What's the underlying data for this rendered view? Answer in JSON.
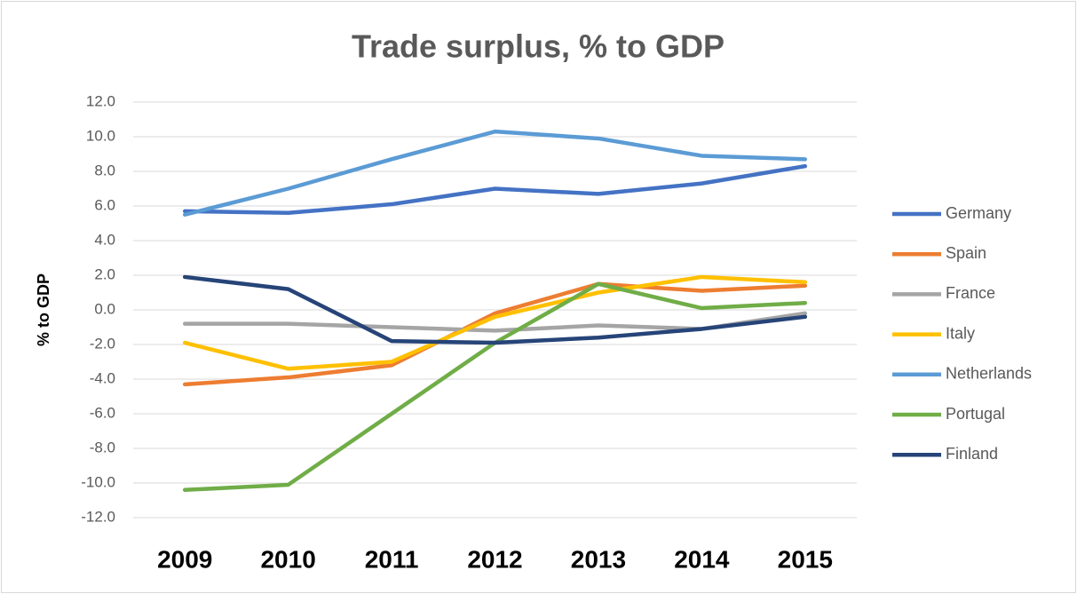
{
  "chart_data": {
    "type": "line",
    "title": "Trade surplus, % to GDP",
    "ylabel": "% to GDP",
    "categories": [
      "2009",
      "2010",
      "2011",
      "2012",
      "2013",
      "2014",
      "2015"
    ],
    "series": [
      {
        "name": "Germany",
        "color": "#4472c4",
        "values": [
          5.7,
          5.6,
          6.1,
          7.0,
          6.7,
          7.3,
          8.3
        ]
      },
      {
        "name": "Spain",
        "color": "#ed7d31",
        "values": [
          -4.3,
          -3.9,
          -3.2,
          -0.2,
          1.5,
          1.1,
          1.4
        ]
      },
      {
        "name": "France",
        "color": "#a5a5a5",
        "values": [
          -0.8,
          -0.8,
          -1.0,
          -1.2,
          -0.9,
          -1.1,
          -0.2
        ]
      },
      {
        "name": "Italy",
        "color": "#ffc000",
        "values": [
          -1.9,
          -3.4,
          -3.0,
          -0.4,
          1.0,
          1.9,
          1.6
        ]
      },
      {
        "name": "Netherlands",
        "color": "#5b9bd5",
        "values": [
          5.5,
          7.0,
          8.7,
          10.3,
          9.9,
          8.9,
          8.7
        ]
      },
      {
        "name": "Portugal",
        "color": "#70ad47",
        "values": [
          -10.4,
          -10.1,
          -6.0,
          -1.9,
          1.5,
          0.1,
          0.4
        ]
      },
      {
        "name": "Finland",
        "color": "#264478",
        "values": [
          1.9,
          1.2,
          -1.8,
          -1.9,
          -1.6,
          -1.1,
          -0.4
        ]
      }
    ],
    "ylim": [
      -12,
      12
    ],
    "yticks": [
      {
        "value": -12,
        "label": "-12.0"
      },
      {
        "value": -10,
        "label": "-10.0"
      },
      {
        "value": -8,
        "label": "-8.0"
      },
      {
        "value": -6,
        "label": "-6.0"
      },
      {
        "value": -4,
        "label": "-4.0"
      },
      {
        "value": -2,
        "label": "-2.0"
      },
      {
        "value": 0,
        "label": "0.0"
      },
      {
        "value": 2,
        "label": "2.0"
      },
      {
        "value": 4,
        "label": "4.0"
      },
      {
        "value": 6,
        "label": "6.0"
      },
      {
        "value": 8,
        "label": "8.0"
      },
      {
        "value": 10,
        "label": "10.0"
      },
      {
        "value": 12,
        "label": "12.0"
      }
    ],
    "grid": true,
    "legend": "right"
  }
}
